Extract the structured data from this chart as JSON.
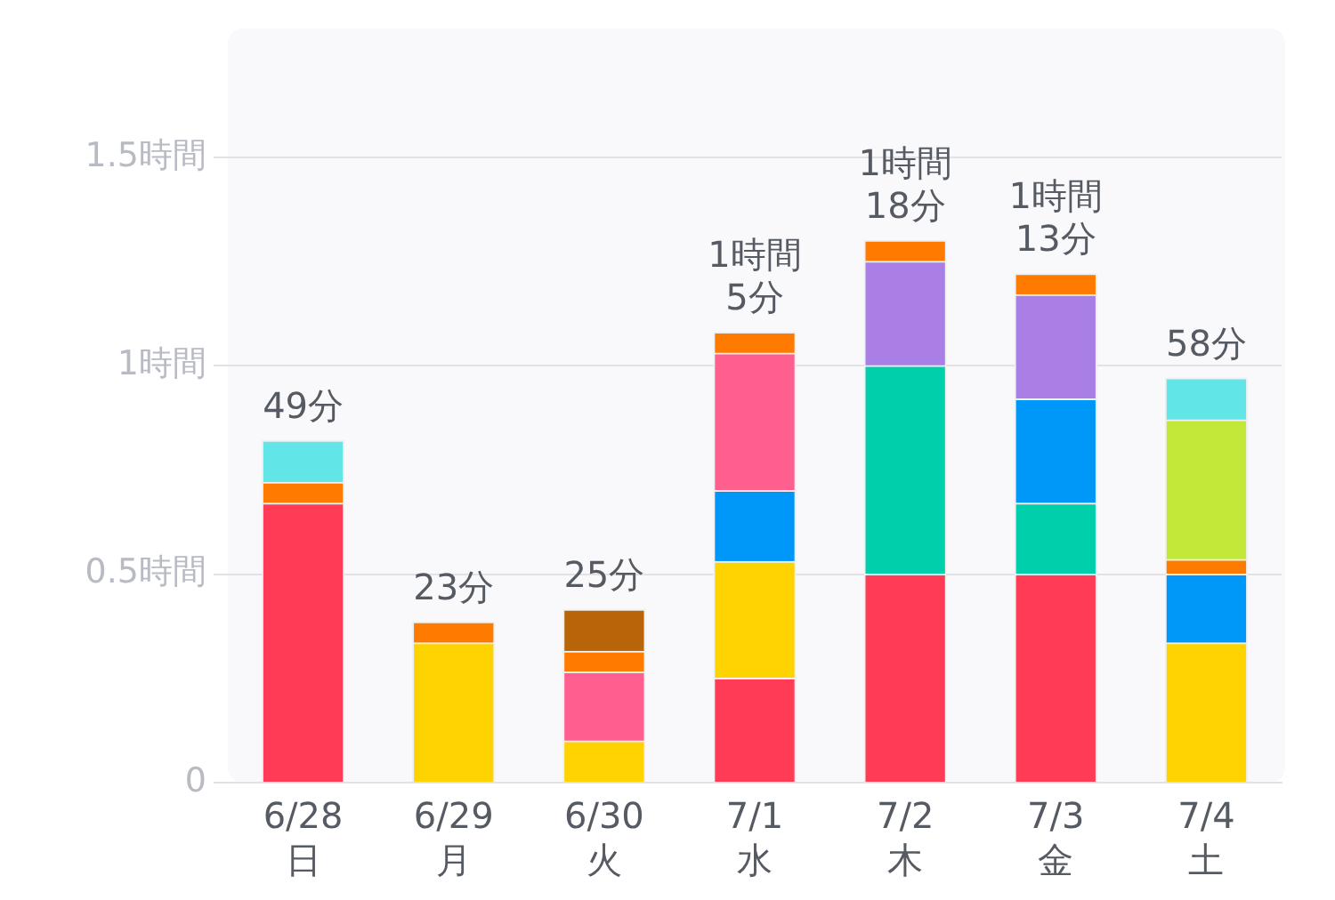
{
  "chart_data": {
    "type": "bar",
    "stacked": true,
    "categories": [
      "6/28\n日",
      "6/29\n月",
      "6/30\n火",
      "7/1\n水",
      "7/2\n木",
      "7/3\n金",
      "7/4\n土"
    ],
    "series": [
      {
        "color": "#ff3b55",
        "values": [
          0.67,
          null,
          null,
          0.25,
          0.5,
          0.5,
          null
        ]
      },
      {
        "color": "#ffd300",
        "values": [
          null,
          0.335,
          0.1,
          0.28,
          null,
          null,
          0.335
        ]
      },
      {
        "color": "#00cfab",
        "values": [
          null,
          null,
          null,
          null,
          0.5,
          0.17,
          null
        ]
      },
      {
        "color": "#0098f8",
        "values": [
          null,
          null,
          null,
          0.17,
          null,
          0.25,
          0.165
        ]
      },
      {
        "color": "#ff5f8f",
        "values": [
          null,
          null,
          0.165,
          0.33,
          null,
          null,
          null
        ]
      },
      {
        "color": "#a97fe6",
        "values": [
          null,
          null,
          null,
          null,
          0.25,
          0.25,
          null
        ]
      },
      {
        "color": "#ff7b00",
        "values": [
          0.05,
          0.05,
          0.05,
          0.05,
          0.05,
          0.05,
          0.035
        ]
      },
      {
        "color": "#c2e83a",
        "values": [
          null,
          null,
          null,
          null,
          null,
          null,
          0.335
        ]
      },
      {
        "color": "#b8650a",
        "values": [
          null,
          null,
          0.1,
          null,
          null,
          null,
          null
        ]
      },
      {
        "color": "#62e5e6",
        "values": [
          0.1,
          null,
          null,
          null,
          null,
          null,
          0.1
        ]
      }
    ],
    "annotations": [
      {
        "text": "49分",
        "x": "6/28\n日",
        "y": 0.82
      },
      {
        "text": "23分",
        "x": "6/29\n月",
        "y": 0.385
      },
      {
        "text": "25分",
        "x": "6/30\n火",
        "y": 0.415
      },
      {
        "text": "1時間\n5分",
        "x": "7/1\n水",
        "y": 1.08
      },
      {
        "text": "1時間\n18分",
        "x": "7/2\n木",
        "y": 1.3
      },
      {
        "text": "1時間\n13分",
        "x": "7/3\n金",
        "y": 1.22
      },
      {
        "text": "58分",
        "x": "7/4\n土",
        "y": 0.97
      }
    ],
    "ylim": [
      0,
      1.8
    ],
    "yticks": [
      {
        "value": 0,
        "label": "0"
      },
      {
        "value": 0.5,
        "label": "0.5時間"
      },
      {
        "value": 1,
        "label": "1時間"
      },
      {
        "value": 1.5,
        "label": "1.5時間"
      }
    ],
    "grid": "y",
    "legend": false
  }
}
